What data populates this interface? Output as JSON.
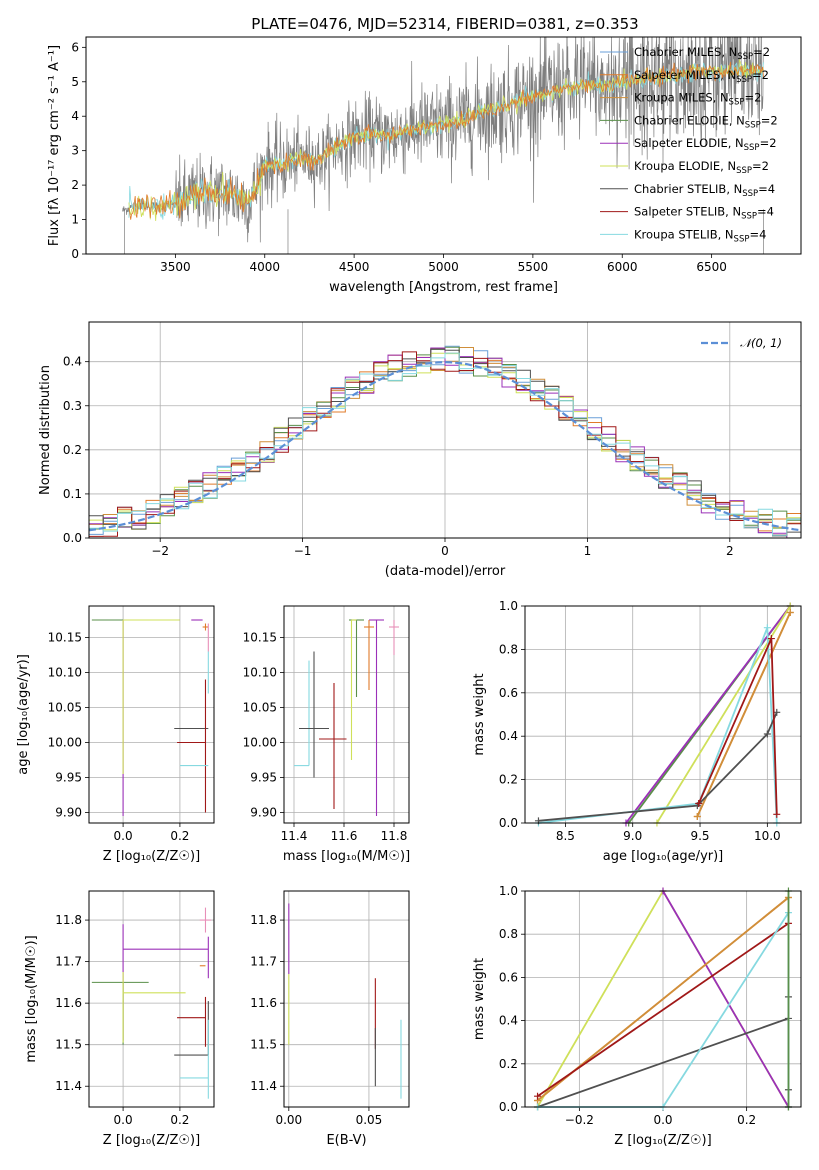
{
  "figure_title": "PLATE=0476, MJD=52314, FIBERID=0381, z=0.353",
  "colors": {
    "chabrier_miles": "#6a9fd8",
    "salpeter_miles": "#e07b2a",
    "kroupa_miles": "#d08f3a",
    "chabrier_elodie": "#5a8f4a",
    "salpeter_elodie": "#9b30b8",
    "kroupa_elodie": "#cfe05a",
    "chabrier_stelib": "#505050",
    "salpeter_stelib": "#a01818",
    "kroupa_stelib": "#86d9e0",
    "data_gray": "#7f7f7f",
    "pink": "#e88fb8",
    "gaussian": "#5b8fd6"
  },
  "chart_data": [
    {
      "id": "spectrum",
      "type": "line",
      "xlabel": "wavelength [Angstrom, rest frame]",
      "ylabel": "Flux [f_λ 10^-17 erg cm^-2 s^-1 A^-1]",
      "xlim": [
        3000,
        7000
      ],
      "ylim": [
        0,
        6.3
      ],
      "xticks": [
        "3500",
        "4000",
        "4500",
        "5000",
        "5500",
        "6000",
        "6500"
      ],
      "yticks": [
        "0",
        "1",
        "2",
        "3",
        "4",
        "5",
        "6"
      ],
      "grid": false,
      "legend_position": "right",
      "legend": [
        {
          "label": "Chabrier MILES, N",
          "sub": "SSP",
          "suffix": "=2",
          "color": "#6a9fd8"
        },
        {
          "label": "Salpeter MILES, N",
          "sub": "SSP",
          "suffix": "=2",
          "color": "#e07b2a"
        },
        {
          "label": "Kroupa MILES, N",
          "sub": "SSP",
          "suffix": "=2",
          "color": "#d08f3a"
        },
        {
          "label": "Chabrier ELODIE, N",
          "sub": "SSP",
          "suffix": "=2",
          "color": "#5a8f4a"
        },
        {
          "label": "Salpeter ELODIE, N",
          "sub": "SSP",
          "suffix": "=2",
          "color": "#9b30b8"
        },
        {
          "label": "Kroupa ELODIE, N",
          "sub": "SSP",
          "suffix": "=2",
          "color": "#cfe05a"
        },
        {
          "label": "Chabrier STELIB, N",
          "sub": "SSP",
          "suffix": "=4",
          "color": "#505050"
        },
        {
          "label": "Salpeter STELIB, N",
          "sub": "SSP",
          "suffix": "=4",
          "color": "#a01818"
        },
        {
          "label": "Kroupa STELIB, N",
          "sub": "SSP",
          "suffix": "=4",
          "color": "#86d9e0"
        }
      ],
      "continuum_knots": [
        [
          3200,
          1.25
        ],
        [
          3300,
          1.45
        ],
        [
          3400,
          1.35
        ],
        [
          3500,
          1.45
        ],
        [
          3600,
          1.7
        ],
        [
          3700,
          1.8
        ],
        [
          3800,
          1.75
        ],
        [
          3900,
          1.5
        ],
        [
          3950,
          1.9
        ],
        [
          4000,
          2.6
        ],
        [
          4100,
          2.6
        ],
        [
          4200,
          2.8
        ],
        [
          4300,
          2.7
        ],
        [
          4400,
          3.1
        ],
        [
          4500,
          3.4
        ],
        [
          4600,
          3.5
        ],
        [
          4700,
          3.4
        ],
        [
          4800,
          3.6
        ],
        [
          4900,
          3.7
        ],
        [
          5000,
          3.75
        ],
        [
          5100,
          3.85
        ],
        [
          5200,
          4.1
        ],
        [
          5300,
          4.2
        ],
        [
          5400,
          4.4
        ],
        [
          5500,
          4.55
        ],
        [
          5600,
          4.7
        ],
        [
          5700,
          4.85
        ],
        [
          5800,
          4.9
        ],
        [
          5900,
          4.9
        ],
        [
          6000,
          5.0
        ],
        [
          6100,
          5.1
        ],
        [
          6200,
          5.15
        ],
        [
          6300,
          5.2
        ],
        [
          6400,
          5.3
        ],
        [
          6500,
          5.3
        ],
        [
          6600,
          5.3
        ],
        [
          6700,
          5.35
        ],
        [
          6800,
          5.3
        ]
      ]
    },
    {
      "id": "residuals",
      "type": "histogram",
      "xlabel": "(data-model)/error",
      "ylabel": "Normed distribution",
      "xlim": [
        -2.5,
        2.5
      ],
      "ylim": [
        0,
        0.49
      ],
      "xticks": [
        "−2",
        "−1",
        "0",
        "1",
        "2"
      ],
      "yticks": [
        "0.0",
        "0.1",
        "0.2",
        "0.3",
        "0.4"
      ],
      "grid": true,
      "legend_position": "top-right",
      "legend": [
        {
          "label": "𝒩(0, 1)",
          "color": "#5b8fd6"
        }
      ]
    },
    {
      "id": "age_vs_Z",
      "type": "errorbar",
      "xlabel": "Z [log₁₀(Z/Z☉)]",
      "ylabel": "age  [log₁₀(age/yr)]",
      "xlim": [
        -0.12,
        0.32
      ],
      "ylim": [
        9.885,
        10.195
      ],
      "xticks": [
        "0.0",
        "0.2"
      ],
      "yticks": [
        "9.90",
        "9.95",
        "10.00",
        "10.05",
        "10.10",
        "10.15"
      ],
      "grid": true,
      "points": [
        {
          "x": 0.0,
          "y": 10.175,
          "xerr": [
            0.11,
            0.2
          ],
          "yerr": [
            0.0,
            0.0
          ],
          "color": "#5a8f4a"
        },
        {
          "x": 0.0,
          "y": 10.175,
          "xerr": [
            0.0,
            0.2
          ],
          "yerr": [
            0.28,
            0.0
          ],
          "color": "#9b30b8"
        },
        {
          "x": 0.0,
          "y": 10.175,
          "xerr": [
            0.0,
            0.2
          ],
          "yerr": [
            0.22,
            0.0
          ],
          "color": "#cfe05a"
        },
        {
          "x": 0.28,
          "y": 10.175,
          "xerr": [
            0.04,
            0.0
          ],
          "yerr": [
            0.0,
            0.0
          ],
          "color": "#9b30b8"
        },
        {
          "x": 0.29,
          "y": 10.165,
          "xerr": [
            0.01,
            0.01
          ],
          "yerr": [
            0.005,
            0.005
          ],
          "color": "#e07b2a"
        },
        {
          "x": 0.3,
          "y": 10.165,
          "xerr": [
            0.0,
            0.0
          ],
          "yerr": [
            0.035,
            0.005
          ],
          "color": "#e88fb8"
        },
        {
          "x": 0.3,
          "y": 10.11,
          "xerr": [
            0.0,
            0.0
          ],
          "yerr": [
            0.04,
            0.02
          ],
          "color": "#86d9e0"
        },
        {
          "x": 0.3,
          "y": 10.02,
          "xerr": [
            0.12,
            0.0
          ],
          "yerr": [
            0.0,
            0.0
          ],
          "color": "#505050"
        },
        {
          "x": 0.29,
          "y": 10.0,
          "xerr": [
            0.1,
            0.0
          ],
          "yerr": [
            0.1,
            0.09
          ],
          "color": "#a01818"
        },
        {
          "x": 0.3,
          "y": 9.967,
          "xerr": [
            0.1,
            0.0
          ],
          "yerr": [
            0.0,
            0.0
          ],
          "color": "#86d9e0"
        }
      ]
    },
    {
      "id": "age_vs_mass",
      "type": "errorbar",
      "xlabel": "mass [log₁₀(M/M☉)]",
      "ylabel": "",
      "xlim": [
        11.36,
        11.86
      ],
      "ylim": [
        9.885,
        10.195
      ],
      "xticks": [
        "11.4",
        "11.6",
        "11.8"
      ],
      "yticks": [
        "9.90",
        "9.95",
        "10.00",
        "10.05",
        "10.10",
        "10.15"
      ],
      "grid": true,
      "points": [
        {
          "x": 11.46,
          "y": 9.967,
          "xerr": [
            0.06,
            0.0
          ],
          "yerr": [
            0.0,
            0.15
          ],
          "color": "#86d9e0"
        },
        {
          "x": 11.48,
          "y": 10.02,
          "xerr": [
            0.06,
            0.06
          ],
          "yerr": [
            0.07,
            0.11
          ],
          "color": "#505050"
        },
        {
          "x": 11.56,
          "y": 10.005,
          "xerr": [
            0.06,
            0.05
          ],
          "yerr": [
            0.1,
            0.08
          ],
          "color": "#a01818"
        },
        {
          "x": 11.65,
          "y": 10.175,
          "xerr": [
            0.03,
            0.03
          ],
          "yerr": [
            0.11,
            0.0
          ],
          "color": "#5a8f4a"
        },
        {
          "x": 11.63,
          "y": 10.175,
          "xerr": [
            0.0,
            0.02
          ],
          "yerr": [
            0.2,
            0.0
          ],
          "color": "#cfe05a"
        },
        {
          "x": 11.73,
          "y": 10.175,
          "xerr": [
            0.03,
            0.03
          ],
          "yerr": [
            0.28,
            0.0
          ],
          "color": "#9b30b8"
        },
        {
          "x": 11.7,
          "y": 10.165,
          "xerr": [
            0.02,
            0.02
          ],
          "yerr": [
            0.09,
            0.01
          ],
          "color": "#e07b2a"
        },
        {
          "x": 11.8,
          "y": 10.165,
          "xerr": [
            0.02,
            0.02
          ],
          "yerr": [
            0.04,
            0.01
          ],
          "color": "#e88fb8"
        }
      ]
    },
    {
      "id": "weight_vs_age",
      "type": "line",
      "xlabel": "age  [log₁₀(age/yr)]",
      "ylabel": "mass weight",
      "xlim": [
        8.2,
        10.25
      ],
      "ylim": [
        0,
        1.0
      ],
      "xticks": [
        "8.5",
        "9.0",
        "9.5",
        "10.0"
      ],
      "yticks": [
        "0.0",
        "0.2",
        "0.4",
        "0.6",
        "0.8",
        "1.0"
      ],
      "grid": true,
      "series": [
        {
          "color": "#5a8f4a",
          "x": [
            8.97,
            10.17
          ],
          "y": [
            0.0,
            1.0
          ]
        },
        {
          "color": "#9b30b8",
          "x": [
            8.95,
            10.17
          ],
          "y": [
            0.0,
            1.0
          ]
        },
        {
          "color": "#cfe05a",
          "x": [
            9.18,
            10.17
          ],
          "y": [
            0.0,
            1.0
          ]
        },
        {
          "color": "#e07b2a",
          "x": [
            9.48,
            10.17
          ],
          "y": [
            0.03,
            0.97
          ]
        },
        {
          "color": "#d08f3a",
          "x": [
            9.48,
            10.17
          ],
          "y": [
            0.03,
            0.97
          ]
        },
        {
          "color": "#86d9e0",
          "x": [
            8.3,
            9.49,
            10.0,
            10.07
          ],
          "y": [
            0.0,
            0.09,
            0.9,
            0.0
          ]
        },
        {
          "color": "#505050",
          "x": [
            8.3,
            9.48,
            10.0,
            10.07
          ],
          "y": [
            0.01,
            0.08,
            0.41,
            0.51
          ]
        },
        {
          "color": "#a01818",
          "x": [
            9.49,
            10.03,
            10.07
          ],
          "y": [
            0.09,
            0.85,
            0.04
          ]
        }
      ]
    },
    {
      "id": "mass_vs_Z",
      "type": "errorbar",
      "xlabel": "Z [log₁₀(Z/Z☉)]",
      "ylabel": "mass [log₁₀(M/M☉)]",
      "xlim": [
        -0.12,
        0.32
      ],
      "ylim": [
        11.35,
        11.87
      ],
      "xticks": [
        "0.0",
        "0.2"
      ],
      "yticks": [
        "11.4",
        "11.5",
        "11.6",
        "11.7",
        "11.8"
      ],
      "grid": true,
      "points": [
        {
          "x": 0.0,
          "y": 11.73,
          "xerr": [
            0.0,
            0.3
          ],
          "yerr": [
            0.22,
            0.06
          ],
          "color": "#9b30b8"
        },
        {
          "x": 0.0,
          "y": 11.65,
          "xerr": [
            0.11,
            0.09
          ],
          "yerr": [
            0.15,
            0.0
          ],
          "color": "#5a8f4a"
        },
        {
          "x": 0.0,
          "y": 11.625,
          "xerr": [
            0.0,
            0.22
          ],
          "yerr": [
            0.12,
            0.05
          ],
          "color": "#cfe05a"
        },
        {
          "x": 0.29,
          "y": 11.8,
          "xerr": [
            0.02,
            0.02
          ],
          "yerr": [
            0.03,
            0.03
          ],
          "color": "#e88fb8"
        },
        {
          "x": 0.3,
          "y": 11.72,
          "xerr": [
            0.0,
            0.0
          ],
          "yerr": [
            0.06,
            0.04
          ],
          "color": "#9b30b8"
        },
        {
          "x": 0.29,
          "y": 11.69,
          "xerr": [
            0.02,
            0.0
          ],
          "yerr": [
            0.0,
            0.0
          ],
          "color": "#e07b2a"
        },
        {
          "x": 0.29,
          "y": 11.565,
          "xerr": [
            0.1,
            0.0
          ],
          "yerr": [
            0.07,
            0.05
          ],
          "color": "#a01818"
        },
        {
          "x": 0.3,
          "y": 11.475,
          "xerr": [
            0.12,
            0.0
          ],
          "yerr": [
            0.0,
            0.13
          ],
          "color": "#505050"
        },
        {
          "x": 0.3,
          "y": 11.42,
          "xerr": [
            0.1,
            0.0
          ],
          "yerr": [
            0.05,
            0.14
          ],
          "color": "#86d9e0"
        }
      ]
    },
    {
      "id": "mass_vs_ebv",
      "type": "errorbar",
      "xlabel": "E(B-V)",
      "ylabel": "",
      "xlim": [
        -0.003,
        0.075
      ],
      "ylim": [
        11.35,
        11.87
      ],
      "xticks": [
        "0.00",
        "0.05"
      ],
      "yticks": [
        "11.4",
        "11.5",
        "11.6",
        "11.7",
        "11.8"
      ],
      "grid": true,
      "points": [
        {
          "x": 0.0,
          "y": 11.73,
          "xerr": [
            0.0,
            0.0
          ],
          "yerr": [
            0.06,
            0.11
          ],
          "color": "#9b30b8"
        },
        {
          "x": 0.0,
          "y": 11.62,
          "xerr": [
            0.0,
            0.0
          ],
          "yerr": [
            0.12,
            0.05
          ],
          "color": "#cfe05a"
        },
        {
          "x": 0.054,
          "y": 11.55,
          "xerr": [
            0.0,
            0.0
          ],
          "yerr": [
            0.06,
            0.11
          ],
          "color": "#a01818"
        },
        {
          "x": 0.054,
          "y": 11.48,
          "xerr": [
            0.0,
            0.0
          ],
          "yerr": [
            0.08,
            0.06
          ],
          "color": "#505050"
        },
        {
          "x": 0.07,
          "y": 11.47,
          "xerr": [
            0.0,
            0.0
          ],
          "yerr": [
            0.1,
            0.09
          ],
          "color": "#86d9e0"
        }
      ]
    },
    {
      "id": "weight_vs_Z",
      "type": "line",
      "xlabel": "Z [log₁₀(Z/Z☉)]",
      "ylabel": "mass weight",
      "xlim": [
        -0.33,
        0.33
      ],
      "ylim": [
        0,
        1.0
      ],
      "xticks": [
        "−0.2",
        "0.0",
        "0.2"
      ],
      "yticks": [
        "0.0",
        "0.2",
        "0.4",
        "0.6",
        "0.8",
        "1.0"
      ],
      "grid": true,
      "series": [
        {
          "color": "#cfe05a",
          "x": [
            -0.3,
            0.0,
            0.3
          ],
          "y": [
            0.0,
            1.0,
            0.0
          ]
        },
        {
          "color": "#9b30b8",
          "x": [
            0.0,
            0.3
          ],
          "y": [
            1.0,
            0.0
          ]
        },
        {
          "color": "#e07b2a",
          "x": [
            -0.3,
            0.3
          ],
          "y": [
            0.03,
            0.97
          ]
        },
        {
          "color": "#d08f3a",
          "x": [
            -0.3,
            0.3
          ],
          "y": [
            0.03,
            0.97
          ]
        },
        {
          "color": "#a01818",
          "x": [
            -0.3,
            0.3
          ],
          "y": [
            0.05,
            0.85
          ]
        },
        {
          "color": "#505050",
          "x": [
            -0.3,
            0.3,
            0.3,
            0.3
          ],
          "y": [
            0.0,
            0.41,
            0.51,
            0.08
          ]
        },
        {
          "color": "#86d9e0",
          "x": [
            -0.3,
            0.0,
            0.3,
            0.3
          ],
          "y": [
            0.0,
            0.0,
            0.9,
            0.0
          ]
        },
        {
          "color": "#5a8f4a",
          "x": [
            0.3,
            0.3
          ],
          "y": [
            0.0,
            1.0
          ]
        }
      ]
    }
  ]
}
